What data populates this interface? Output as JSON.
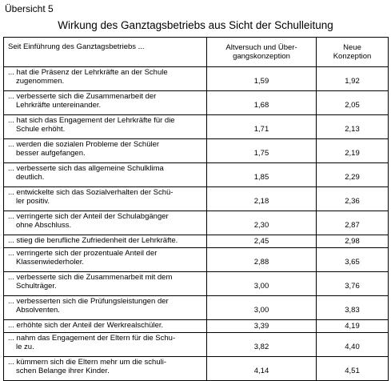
{
  "header": {
    "label": "Übersicht 5",
    "title": "Wirkung des Ganztagsbetriebs aus Sicht der Schulleitung"
  },
  "table": {
    "columns": [
      "Seit Einführung des Ganztagsbetriebs ...",
      "Altversuch und Über-gangskonzeption",
      "Neue Konzeption"
    ],
    "column_lines": [
      [
        "Seit Einführung des Ganztagsbetriebs ..."
      ],
      [
        "Altversuch und Über-",
        "gangskonzeption"
      ],
      [
        "Neue",
        "Konzeption"
      ]
    ],
    "rows": [
      {
        "line1": "... hat die Präsenz der Lehrkräfte an der Schule",
        "line2": "zugenommen.",
        "alt": "1,59",
        "neu": "1,92"
      },
      {
        "line1": "... verbesserte sich die Zusammenarbeit der",
        "line2": "Lehrkräfte untereinander.",
        "alt": "1,68",
        "neu": "2,05"
      },
      {
        "line1": "... hat sich das Engagement der Lehrkräfte für die",
        "line2": "Schule erhöht.",
        "alt": "1,71",
        "neu": "2,13"
      },
      {
        "line1": "... werden die sozialen Probleme der Schüler",
        "line2": "besser aufgefangen.",
        "alt": "1,75",
        "neu": "2,19"
      },
      {
        "line1": "... verbesserte sich das allgemeine Schulklima",
        "line2": "deutlich.",
        "alt": "1,85",
        "neu": "2,29"
      },
      {
        "line1": "... entwickelte sich das Sozialverhalten der Schü-",
        "line2": "ler positiv.",
        "alt": "2,18",
        "neu": "2,36"
      },
      {
        "line1": "... verringerte sich der Anteil der Schulabgänger",
        "line2": "ohne Abschluss.",
        "alt": "2,30",
        "neu": "2,87"
      },
      {
        "line1": "... stieg die berufliche Zufriedenheit der Lehrkräfte.",
        "line2": "",
        "alt": "2,45",
        "neu": "2,98"
      },
      {
        "line1": "... verringerte sich der prozentuale Anteil der",
        "line2": "Klassenwiederholer.",
        "alt": "2,88",
        "neu": "3,65"
      },
      {
        "line1": "... verbesserte sich die Zusammenarbeit mit dem",
        "line2": "Schulträger.",
        "alt": "3,00",
        "neu": "3,76"
      },
      {
        "line1": "... verbesserten sich die Prüfungsleistungen der",
        "line2": "Absolventen.",
        "alt": "3,00",
        "neu": "3,83"
      },
      {
        "line1": "... erhöhte sich der Anteil der Werkrealschüler.",
        "line2": "",
        "alt": "3,39",
        "neu": "4,19"
      },
      {
        "line1": "... nahm das Engagement der Eltern für die Schu-",
        "line2": "le zu.",
        "alt": "3,82",
        "neu": "4,40"
      },
      {
        "line1": "... kümmern sich die Eltern mehr um die schuli-",
        "line2": "schen Belange ihrer Kinder.",
        "alt": "4,14",
        "neu": "4,51"
      }
    ]
  }
}
